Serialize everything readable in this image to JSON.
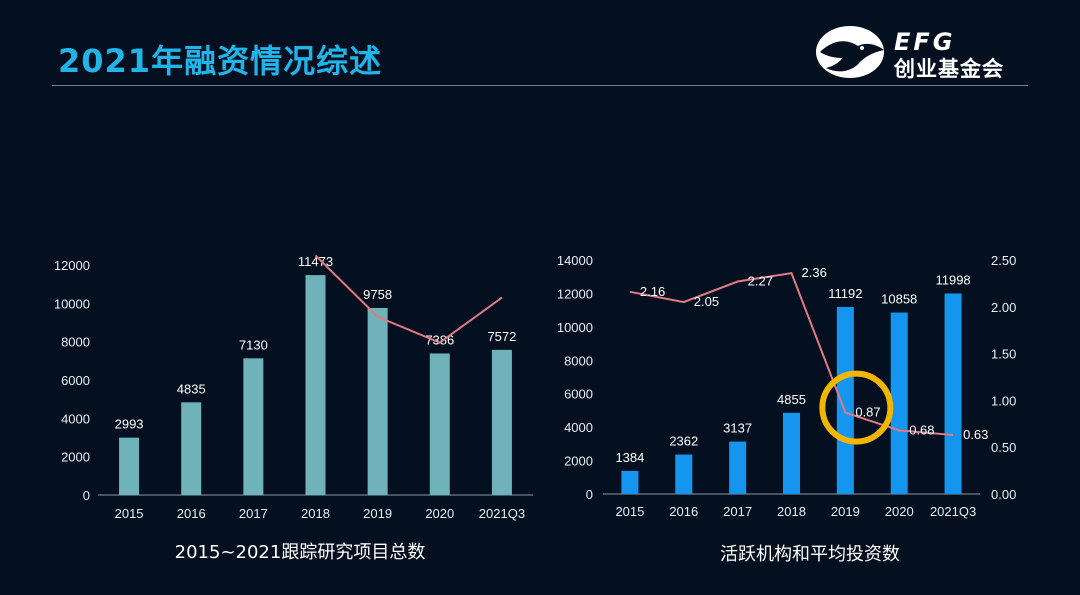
{
  "page": {
    "title": "2021年融资情况综述",
    "logo": {
      "mark": "EFG",
      "org": "创业基金会"
    }
  },
  "chart_data": [
    {
      "type": "bar",
      "title": "2015~2021跟踪研究项目总数",
      "categories": [
        "2015",
        "2016",
        "2017",
        "2018",
        "2019",
        "2020",
        "2021Q3"
      ],
      "values": [
        2993,
        4835,
        7130,
        11473,
        9758,
        7386,
        7572
      ],
      "data_labels": [
        "2993",
        "4835",
        "7130",
        "11473",
        "9758",
        "7386",
        "7572"
      ],
      "y_ticks": [
        "0",
        "2000",
        "4000",
        "6000",
        "8000",
        "10000",
        "12000"
      ],
      "ylim": [
        0,
        12000
      ],
      "bar_color": "#6fb2ba",
      "overlay_line": {
        "color": "#e07a84",
        "categories": [
          "2018",
          "2019",
          "2020",
          "2021Q3"
        ],
        "values": [
          12500,
          9300,
          7950,
          10300
        ]
      }
    },
    {
      "type": "bar",
      "title": "活跃机构和平均投资数",
      "categories": [
        "2015",
        "2016",
        "2017",
        "2018",
        "2019",
        "2020",
        "2021Q3"
      ],
      "series": [
        {
          "axis": "left",
          "type": "bar",
          "values": [
            1384,
            2362,
            3137,
            4855,
            11192,
            10858,
            11998
          ],
          "data_labels": [
            "1384",
            "2362",
            "3137",
            "4855",
            "11192",
            "10858",
            "11998"
          ],
          "color": "#1595ee"
        },
        {
          "axis": "right",
          "type": "line",
          "values": [
            2.16,
            2.05,
            2.27,
            2.36,
            0.87,
            0.68,
            0.63
          ],
          "data_labels": [
            "2.16",
            "2.05",
            "2.27",
            "2.36",
            "0.87",
            "0.68",
            "0.63"
          ],
          "color": "#e07a84"
        }
      ],
      "y_ticks_left": [
        "0",
        "2000",
        "4000",
        "6000",
        "8000",
        "10000",
        "12000",
        "14000"
      ],
      "ylim_left": [
        0,
        14000
      ],
      "y_ticks_right": [
        "0.00",
        "0.50",
        "1.00",
        "1.50",
        "2.00",
        "2.50"
      ],
      "ylim_right": [
        0,
        2.5
      ],
      "highlight": {
        "category": "2019",
        "color": "#f2b600"
      }
    }
  ]
}
